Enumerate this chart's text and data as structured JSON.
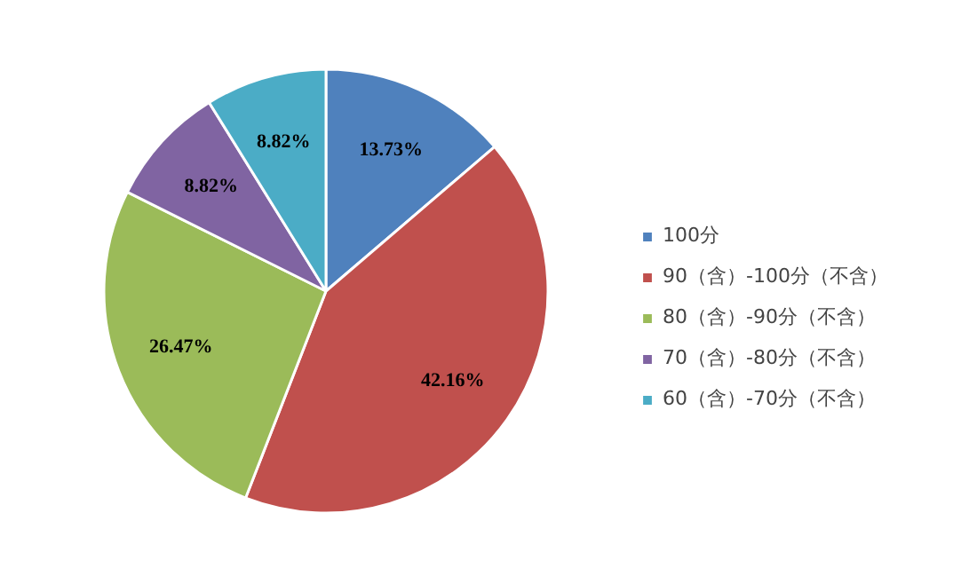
{
  "chart_data": {
    "type": "pie",
    "categories": [
      "100分",
      "90（含）-100分（不含）",
      "80（含）-90分（不含）",
      "70（含）-80分（不含）",
      "60（含）-70分（不含）"
    ],
    "values": [
      13.73,
      42.16,
      26.47,
      8.82,
      8.82
    ],
    "colors": [
      "#4f81bd",
      "#c0504d",
      "#9bbb59",
      "#8064a2",
      "#4bacc6"
    ],
    "value_labels": [
      "13.73%",
      "42.16%",
      "26.47%",
      "8.82%",
      "8.82%"
    ],
    "legend": "right"
  }
}
